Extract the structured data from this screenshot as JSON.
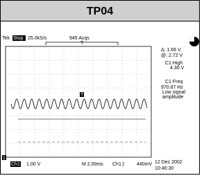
{
  "header": {
    "title": "TP04"
  },
  "status": {
    "brand": "Tek",
    "state": "Stop",
    "rate": "25.0kS/s",
    "acquisitions": "945 Acqs",
    "trigger_position": "T"
  },
  "screen": {
    "trigger_marker": "T",
    "channel_marker": "1"
  },
  "readouts": [
    "Δ: 1.66 V",
    "@: 2.72 V",
    "C1 High",
    "4.30 V",
    "C1 Freq",
    "970.87 Hz",
    "Low signal",
    "amplitude"
  ],
  "footer": {
    "channel": "Ch1",
    "volts_per_div": "1.00 V",
    "timebase": "M 2.00ms",
    "trigger_source": "Ch1 ∫",
    "trigger_level": "440mV",
    "date": "12 Dec 2002",
    "time": "10:46:30"
  }
}
